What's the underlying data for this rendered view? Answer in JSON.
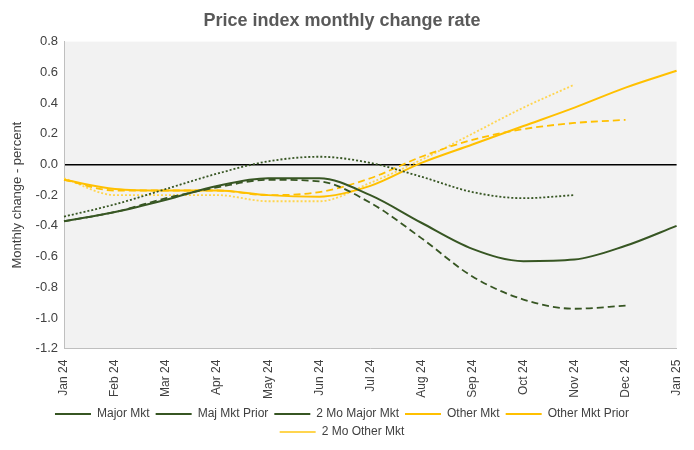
{
  "chart_data": {
    "type": "line",
    "title": "Price index monthly change rate",
    "y_label": "Monthly change - percent",
    "categories": [
      "Jan 24",
      "Feb 24",
      "Mar 24",
      "Apr 24",
      "May 24",
      "Jun 24",
      "Jul 24",
      "Aug 24",
      "Sep 24",
      "Oct 24",
      "Nov 24",
      "Dec 24",
      "Jan 25"
    ],
    "series": [
      {
        "name": "Major Mkt",
        "color": "#375623",
        "line_style": "solid",
        "values": [
          -0.37,
          -0.31,
          -0.23,
          -0.14,
          -0.09,
          -0.09,
          -0.2,
          -0.38,
          -0.55,
          -0.63,
          -0.62,
          -0.53,
          -0.4
        ]
      },
      {
        "name": "Maj Mkt Prior",
        "color": "#375623",
        "line_style": "dashed",
        "values": [
          -0.37,
          -0.31,
          -0.22,
          -0.15,
          -0.1,
          -0.11,
          -0.25,
          -0.48,
          -0.73,
          -0.88,
          -0.94,
          -0.92,
          null
        ]
      },
      {
        "name": "2 Mo Major Mkt",
        "color": "#375623",
        "line_style": "dotted",
        "values": [
          -0.34,
          -0.26,
          -0.16,
          -0.06,
          0.02,
          0.05,
          0.01,
          -0.08,
          -0.18,
          -0.22,
          -0.2,
          null,
          null
        ]
      },
      {
        "name": "Other Mkt",
        "color": "#ffc000",
        "line_style": "solid",
        "values": [
          -0.1,
          -0.16,
          -0.17,
          -0.17,
          -0.2,
          -0.21,
          -0.14,
          0.01,
          0.13,
          0.25,
          0.37,
          0.5,
          0.61
        ]
      },
      {
        "name": "Other Mkt Prior",
        "color": "#ffc000",
        "line_style": "dashed",
        "values": [
          -0.1,
          -0.17,
          -0.17,
          -0.17,
          -0.2,
          -0.18,
          -0.09,
          0.05,
          0.16,
          0.23,
          0.27,
          0.29,
          null
        ]
      },
      {
        "name": "2 Mo Other Mkt",
        "color": "#ffd54f",
        "line_style": "dotted",
        "values": [
          -0.09,
          -0.2,
          -0.2,
          -0.2,
          -0.24,
          -0.24,
          -0.12,
          0.03,
          0.2,
          0.37,
          0.52,
          null,
          null
        ]
      }
    ],
    "ylim": [
      -1.2,
      0.8
    ],
    "yticks": [
      -1.2,
      {
        "value": -1,
        "label": "-1.0"
      },
      -0.8,
      -0.6,
      -0.4,
      -0.2,
      {
        "value": 0,
        "label": "0.0"
      },
      0.2,
      0.4,
      0.6,
      0.8
    ],
    "grid": false,
    "legend": "bottom"
  }
}
